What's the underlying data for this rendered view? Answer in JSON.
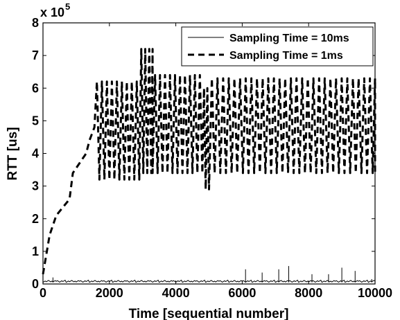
{
  "chart_data": {
    "type": "line",
    "title": "",
    "xlabel": "Time [sequential number]",
    "ylabel": "RTT [us]",
    "y_multiplier_label": "x 10",
    "y_multiplier_exponent": "5",
    "xlim": [
      0,
      10000
    ],
    "ylim": [
      0,
      8
    ],
    "xticks": [
      0,
      2000,
      4000,
      6000,
      8000,
      10000
    ],
    "yticks": [
      0,
      1,
      2,
      3,
      4,
      5,
      6,
      7,
      8
    ],
    "grid": false,
    "legend_position": "top-right",
    "series": [
      {
        "name": "Sampling Time = 10ms",
        "style": "solid",
        "color": "#000000",
        "baseline_level": 0.05,
        "spikes": [
          [
            300,
            0.2
          ],
          [
            6100,
            0.45
          ],
          [
            6600,
            0.35
          ],
          [
            7100,
            0.45
          ],
          [
            7400,
            0.55
          ],
          [
            8100,
            0.3
          ],
          [
            8600,
            0.3
          ],
          [
            9000,
            0.5
          ],
          [
            9400,
            0.4
          ],
          [
            9900,
            0.15
          ]
        ]
      },
      {
        "name": "Sampling Time = 1ms",
        "style": "dashed",
        "color": "#000000",
        "x": [
          0,
          100,
          200,
          400,
          600,
          800,
          900,
          1100,
          1300,
          1400,
          1550
        ],
        "y": [
          0.3,
          0.9,
          1.5,
          2.1,
          2.35,
          2.6,
          3.4,
          3.7,
          4.0,
          4.4,
          4.8
        ],
        "oscillation": {
          "segments": [
            {
              "x_start": 1550,
              "x_end": 2900,
              "low": 3.2,
              "high": 6.2,
              "period": 150
            },
            {
              "x_start": 2900,
              "x_end": 3300,
              "low": 3.4,
              "high": 7.2,
              "period": 120
            },
            {
              "x_start": 3300,
              "x_end": 4800,
              "low": 3.4,
              "high": 6.4,
              "period": 150
            },
            {
              "x_start": 4800,
              "x_end": 5000,
              "low": 2.9,
              "high": 6.0,
              "period": 100
            },
            {
              "x_start": 5000,
              "x_end": 10000,
              "low": 3.4,
              "high": 6.3,
              "period": 170
            }
          ]
        }
      }
    ]
  }
}
